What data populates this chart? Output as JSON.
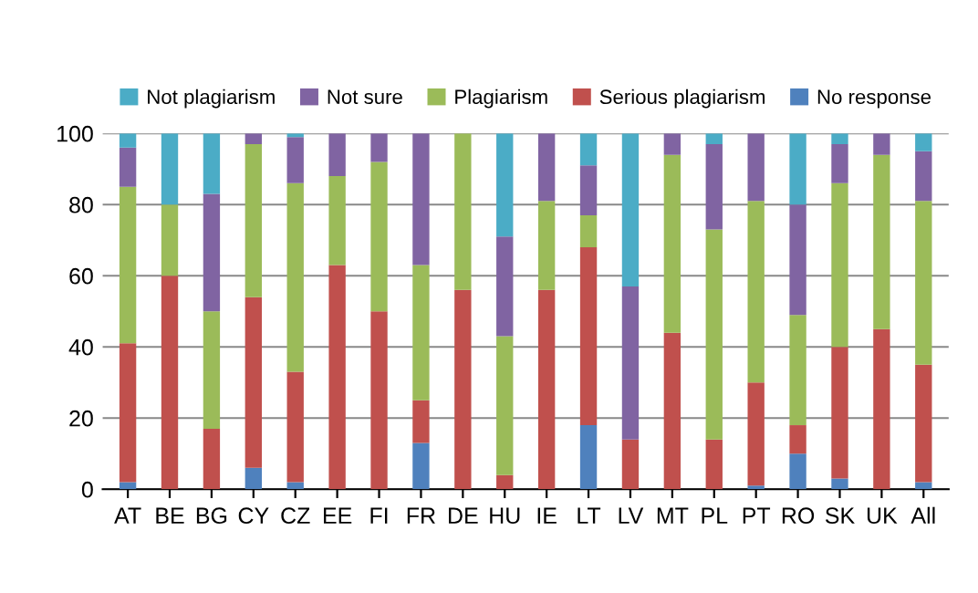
{
  "chart_data": {
    "type": "bar",
    "stacked": true,
    "categories": [
      "AT",
      "BE",
      "BG",
      "CY",
      "CZ",
      "EE",
      "FI",
      "FR",
      "DE",
      "HU",
      "IE",
      "LT",
      "LV",
      "MT",
      "PL",
      "PT",
      "RO",
      "SK",
      "UK",
      "All"
    ],
    "series": [
      {
        "name": "No response",
        "color": "#4f81bd",
        "values": [
          2,
          0,
          0,
          6,
          2,
          0,
          0,
          13,
          0,
          0,
          0,
          18,
          0,
          0,
          0,
          1,
          10,
          3,
          0,
          2
        ]
      },
      {
        "name": "Serious plagiarism",
        "color": "#c0504d",
        "values": [
          39,
          60,
          17,
          48,
          31,
          63,
          50,
          12,
          56,
          4,
          56,
          50,
          14,
          44,
          14,
          29,
          8,
          37,
          45,
          33
        ]
      },
      {
        "name": "Plagiarism",
        "color": "#9bbb59",
        "values": [
          44,
          20,
          33,
          43,
          53,
          25,
          42,
          38,
          44,
          39,
          25,
          9,
          0,
          50,
          59,
          51,
          31,
          46,
          49,
          46
        ]
      },
      {
        "name": "Not sure",
        "color": "#8064a2",
        "values": [
          11,
          0,
          33,
          3,
          13,
          12,
          8,
          37,
          0,
          28,
          19,
          14,
          43,
          6,
          24,
          19,
          31,
          11,
          6,
          14
        ]
      },
      {
        "name": "Not plagiarism",
        "color": "#4bacc6",
        "values": [
          4,
          20,
          17,
          0,
          1,
          0,
          0,
          0,
          0,
          29,
          0,
          9,
          43,
          0,
          3,
          0,
          20,
          3,
          0,
          5
        ]
      }
    ],
    "ylim": [
      0,
      100
    ],
    "yticks": [
      0,
      20,
      40,
      60,
      80,
      100
    ],
    "grid": "y",
    "legend": "top"
  }
}
